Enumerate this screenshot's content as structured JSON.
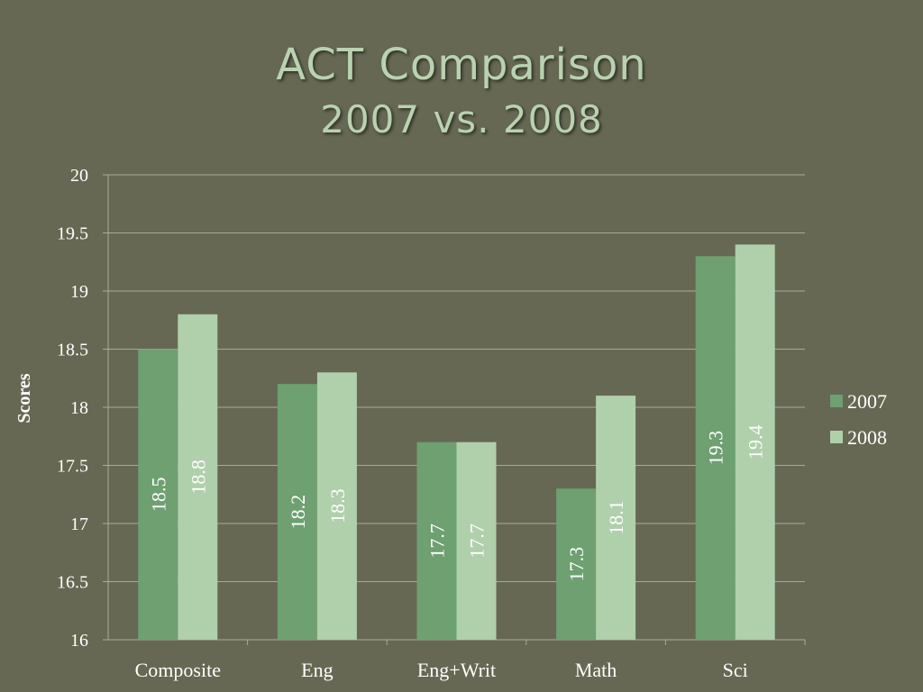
{
  "slide": {
    "title_line1": "ACT Comparison",
    "title_line2": "2007 vs. 2008"
  },
  "colors": {
    "background": "#666853",
    "series_2007": "#6ea071",
    "series_2008": "#b0cfab",
    "gridline": "#a9ab9a",
    "axis_text": "#ffffff"
  },
  "chart_data": {
    "type": "bar",
    "title": "ACT Comparison 2007 vs. 2008",
    "xlabel": "",
    "ylabel": "Scores",
    "ylim": [
      16,
      20
    ],
    "yticks": [
      "16",
      "16.5",
      "17",
      "17.5",
      "18",
      "18.5",
      "19",
      "19.5",
      "20"
    ],
    "categories": [
      "Composite",
      "Eng",
      "Eng+Writ",
      "Math",
      "Sci"
    ],
    "series": [
      {
        "name": "2007",
        "values": [
          18.5,
          18.2,
          17.7,
          17.3,
          19.3
        ],
        "labels": [
          "18.5",
          "18.2",
          "17.7",
          "17.3",
          "19.3"
        ]
      },
      {
        "name": "2008",
        "values": [
          18.8,
          18.3,
          17.7,
          18.1,
          19.4
        ],
        "labels": [
          "18.8",
          "18.3",
          "17.7",
          "18.1",
          "19.4"
        ]
      }
    ],
    "grid": true,
    "legend_position": "right",
    "data_labels": "inside, rotated vertical"
  }
}
